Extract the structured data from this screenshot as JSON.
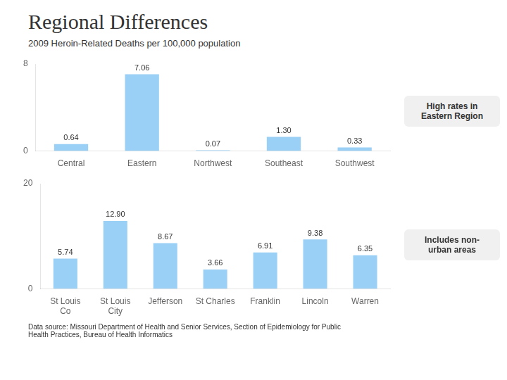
{
  "title": "Regional Differences",
  "subtitle": "2009 Heroin-Related Deaths per 100,000 population",
  "footnote": "Data source:  Missouri Department of Health and Senior Services, Section of Epidemiology for Public\nHealth Practices, Bureau of Health Informatics",
  "chart_data": [
    {
      "type": "bar",
      "categories": [
        "Central",
        "Eastern",
        "Northwest",
        "Southeast",
        "Southwest"
      ],
      "values": [
        0.64,
        7.06,
        0.07,
        1.3,
        0.33
      ],
      "value_labels": [
        "0.64",
        "7.06",
        "0.07",
        "1.30",
        "0.33"
      ],
      "data_labels": true,
      "ylim": [
        0,
        8
      ],
      "yticks": [
        0,
        8
      ],
      "grid": false,
      "annotations": [
        "High rates in\nEastern Region"
      ]
    },
    {
      "type": "bar",
      "categories": [
        "St Louis\nCo",
        "St Louis\nCity",
        "Jefferson",
        "St Charles",
        "Franklin",
        "Lincoln",
        "Warren"
      ],
      "values": [
        5.74,
        12.9,
        8.67,
        3.66,
        6.91,
        9.38,
        6.35
      ],
      "value_labels": [
        "5.74",
        "12.90",
        "8.67",
        "3.66",
        "6.91",
        "9.38",
        "6.35"
      ],
      "data_labels": true,
      "ylim": [
        0,
        20
      ],
      "yticks": [
        0,
        20
      ],
      "grid": false,
      "annotations": [
        "Includes non-\nurban areas"
      ]
    }
  ]
}
